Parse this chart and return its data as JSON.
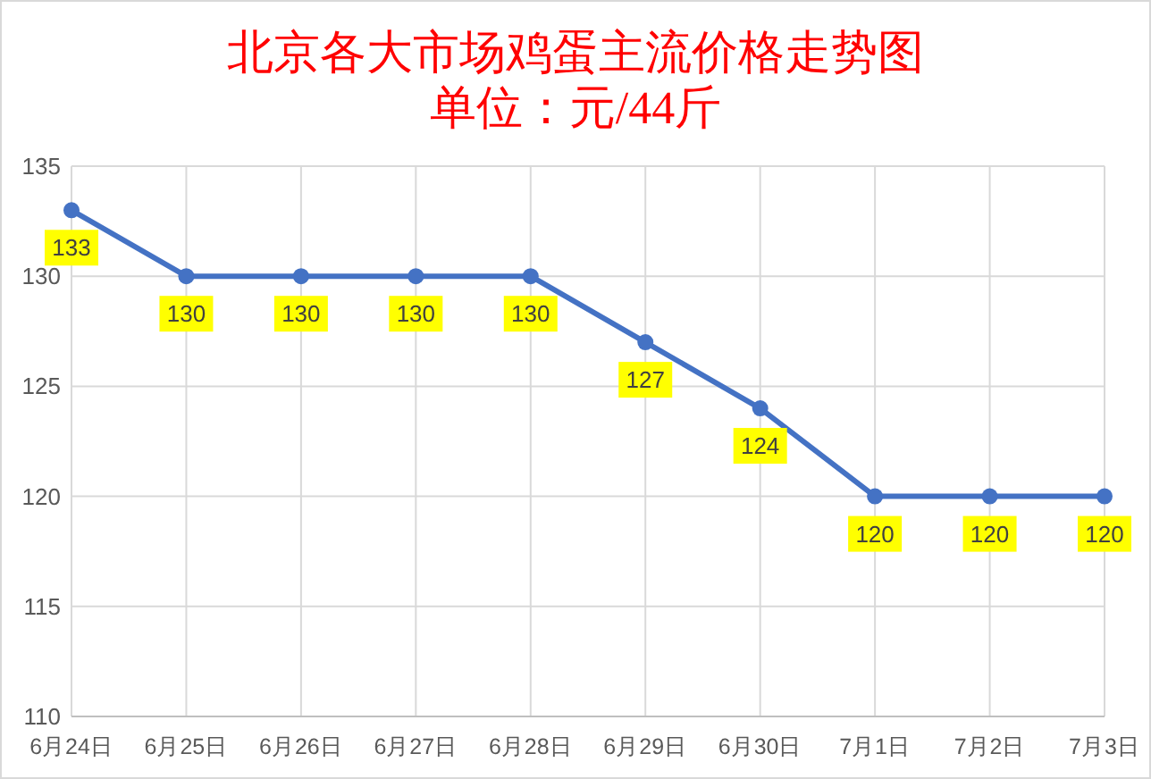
{
  "chart_data": {
    "type": "line",
    "title": "北京各大市场鸡蛋主流价格走势图",
    "subtitle": "单位：元/44斤",
    "categories": [
      "6月24日",
      "6月25日",
      "6月26日",
      "6月27日",
      "6月28日",
      "6月29日",
      "6月30日",
      "7月1日",
      "7月2日",
      "7月3日"
    ],
    "series": [
      {
        "color": "#4472c4",
        "values": [
          133,
          130,
          130,
          130,
          130,
          127,
          124,
          120,
          120,
          120
        ]
      }
    ],
    "ylim": [
      110,
      135
    ],
    "yticks": [
      110,
      115,
      120,
      125,
      130,
      135
    ],
    "grid": true,
    "marker": "circle",
    "line_style": "solid",
    "data_labels": true
  }
}
